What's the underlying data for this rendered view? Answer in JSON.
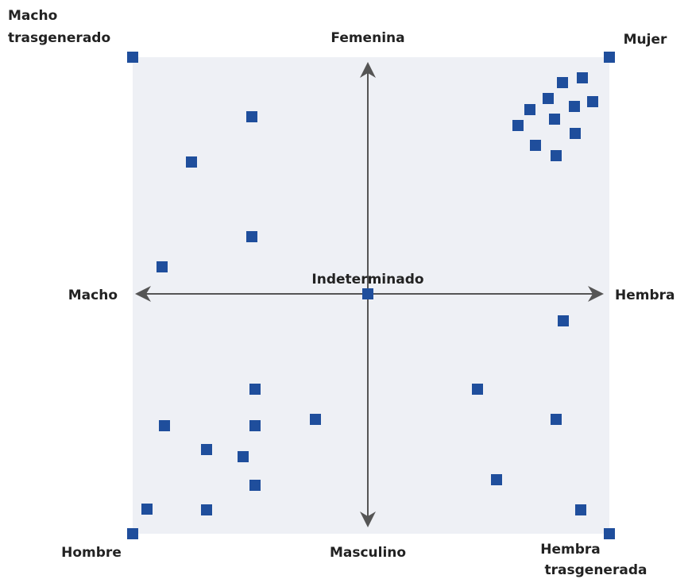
{
  "labels": {
    "top_left": [
      "Macho",
      "trasgenerado"
    ],
    "top": "Femenina",
    "top_right": "Mujer",
    "left": "Macho",
    "center": "Indeterminado",
    "right": "Hembra",
    "bottom_left": "Hombre",
    "bottom": "Masculino",
    "bottom_right": [
      "Hembra",
      "trasgenerada"
    ]
  }
}
